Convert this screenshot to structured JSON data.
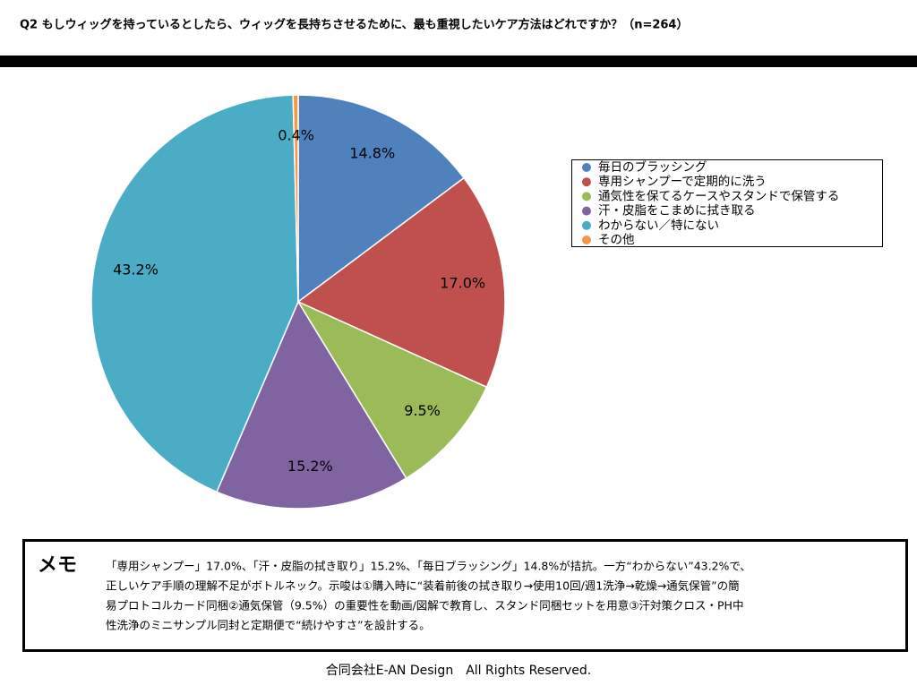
{
  "chart_data": {
    "type": "pie",
    "title": "Q2 もしウィッグを持っているとしたら、ウィッグを長持ちさせるために、最も重視したいケア方法はどれですか？（n=264）",
    "categories": [
      "毎日のブラッシング",
      "専用シャンプーで定期的に洗う",
      "通気性を保てるケースやスタンドで保管する",
      "汗・皮脂をこまめに拭き取る",
      "わからない／特にない",
      "その他"
    ],
    "values": [
      14.8,
      17.0,
      9.5,
      15.2,
      43.2,
      0.4
    ],
    "value_labels": [
      "14.8%",
      "17.0%",
      "9.5%",
      "15.2%",
      "43.2%",
      "0.4%"
    ],
    "colors": [
      "#4f81bd",
      "#c0504d",
      "#9bbb59",
      "#8064a2",
      "#4bacc6",
      "#f79646"
    ],
    "legend": "right"
  },
  "memo": {
    "heading": "メモ",
    "lines": [
      "「専用シャンプー」17.0%、「汗・皮脂の拭き取り」15.2%、「毎日ブラッシング」14.8%が拮抗。一方“わからない”43.2%で、",
      "正しいケア手順の理解不足がボトルネック。示唆は①購入時に“装着前後の拭き取り→使用10回/週1洗浄→乾燥→通気保管”の簡",
      "易プロトコルカード同梱②通気保管（9.5%）の重要性を動画/図解で教育し、スタンド同梱セットを用意③汗対策クロス・PH中",
      "性洗浄のミニサンプル同封と定期便で“続けやすさ”を設計する。"
    ]
  },
  "footer": "合同会社E-AN Design　All Rights Reserved."
}
